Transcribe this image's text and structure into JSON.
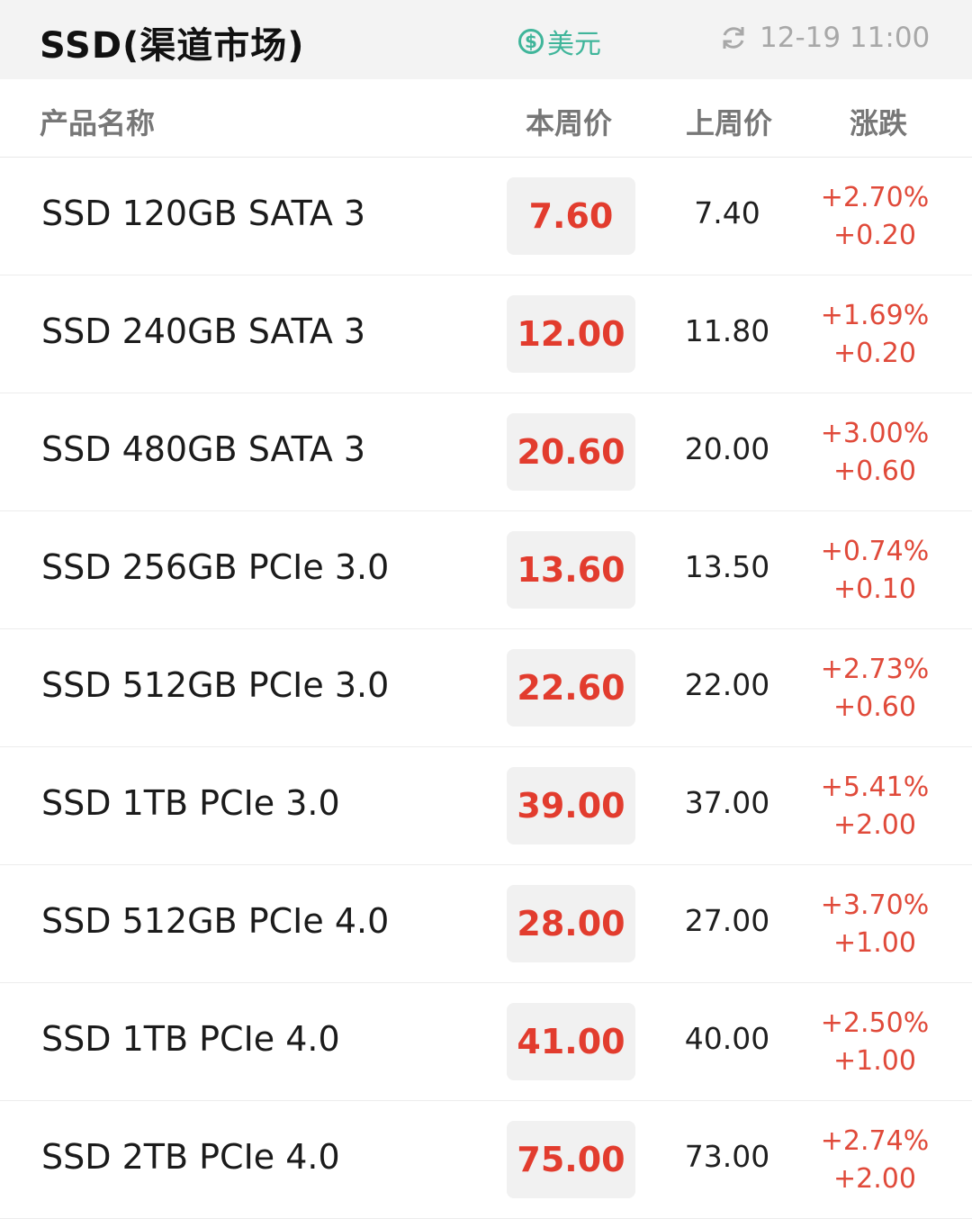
{
  "header": {
    "title": "SSD(渠道市场)",
    "currency": {
      "icon": "dollar-icon",
      "symbol": "$",
      "label": "美元"
    },
    "update": {
      "icon": "refresh-icon",
      "time": "12-19 11:00"
    }
  },
  "columns": {
    "name": "产品名称",
    "current": "本周价",
    "previous": "上周价",
    "change": "涨跌"
  },
  "colors": {
    "up": "#e04a3a",
    "accent": "#3fb59a"
  },
  "rows": [
    {
      "name": "SSD 120GB SATA 3",
      "current": "7.60",
      "previous": "7.40",
      "pct": "+2.70%",
      "diff": "+0.20"
    },
    {
      "name": "SSD 240GB SATA 3",
      "current": "12.00",
      "previous": "11.80",
      "pct": "+1.69%",
      "diff": "+0.20"
    },
    {
      "name": "SSD 480GB SATA 3",
      "current": "20.60",
      "previous": "20.00",
      "pct": "+3.00%",
      "diff": "+0.60"
    },
    {
      "name": "SSD 256GB PCIe 3.0",
      "current": "13.60",
      "previous": "13.50",
      "pct": "+0.74%",
      "diff": "+0.10"
    },
    {
      "name": "SSD 512GB PCIe 3.0",
      "current": "22.60",
      "previous": "22.00",
      "pct": "+2.73%",
      "diff": "+0.60"
    },
    {
      "name": "SSD 1TB PCIe 3.0",
      "current": "39.00",
      "previous": "37.00",
      "pct": "+5.41%",
      "diff": "+2.00"
    },
    {
      "name": "SSD 512GB PCIe 4.0",
      "current": "28.00",
      "previous": "27.00",
      "pct": "+3.70%",
      "diff": "+1.00"
    },
    {
      "name": "SSD 1TB PCIe 4.0",
      "current": "41.00",
      "previous": "40.00",
      "pct": "+2.50%",
      "diff": "+1.00"
    },
    {
      "name": "SSD 2TB PCIe 4.0",
      "current": "75.00",
      "previous": "73.00",
      "pct": "+2.74%",
      "diff": "+2.00"
    }
  ]
}
